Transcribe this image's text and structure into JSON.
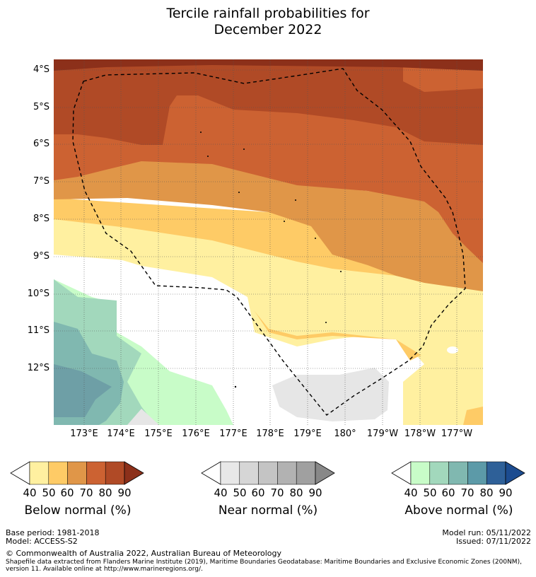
{
  "title_line1": "Tercile rainfall probabilities for",
  "title_line2": "December 2022",
  "lat_labels": [
    "4°S",
    "5°S",
    "6°S",
    "7°S",
    "8°S",
    "9°S",
    "10°S",
    "11°S",
    "12°S"
  ],
  "lon_labels": [
    "173°E",
    "174°E",
    "175°E",
    "176°E",
    "177°E",
    "178°E",
    "179°E",
    "180°",
    "179°W",
    "178°W",
    "177°W"
  ],
  "colorbars": [
    {
      "label": "Below normal (%)",
      "ticks": [
        "40",
        "50",
        "60",
        "70",
        "80",
        "90"
      ],
      "colors": [
        "#fff0a0",
        "#fecb66",
        "#e09648",
        "#cc6232",
        "#b04a26",
        "#8c301a"
      ]
    },
    {
      "label": "Near normal (%)",
      "ticks": [
        "40",
        "50",
        "60",
        "70",
        "80",
        "90"
      ],
      "colors": [
        "#e8e8e8",
        "#d6d6d6",
        "#c4c4c4",
        "#b2b2b2",
        "#a0a0a0",
        "#888888"
      ]
    },
    {
      "label": "Above normal (%)",
      "ticks": [
        "40",
        "50",
        "60",
        "70",
        "80",
        "90"
      ],
      "colors": [
        "#c8fcc8",
        "#a2d8bc",
        "#80b8b0",
        "#5c9aa8",
        "#2e6098",
        "#1c4c90"
      ]
    }
  ],
  "footer": {
    "base_period": "Base period: 1981-2018",
    "model": "Model: ACCESS-S2",
    "model_run": "Model run: 05/11/2022",
    "issued": "Issued: 07/11/2022",
    "copyright": "© Commonwealth of Australia 2022, Australian Bureau of Meteorology",
    "shapefile_line1": "Shapefile data extracted from Flanders Marine Institute (2019), Maritime Boundaries Geodatabase: Maritime Boundaries and Exclusive Economic Zones (200NM),",
    "shapefile_line2": "version 11. Available online at http://www.marineregions.org/."
  }
}
